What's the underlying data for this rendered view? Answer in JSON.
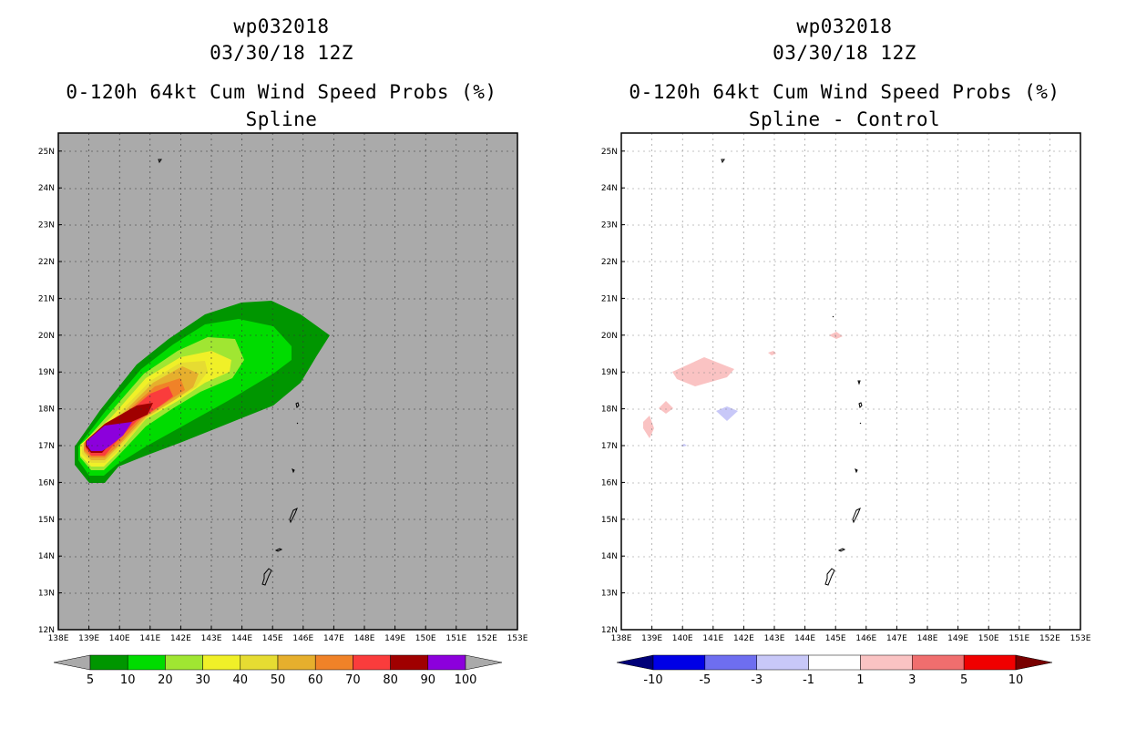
{
  "left_panel": {
    "title_line1": "wp032018",
    "title_line2": "03/30/18 12Z",
    "title_line3": "0-120h 64kt Cum Wind Speed Probs (%)",
    "title_line4": "Spline",
    "colorbar_labels": [
      "5",
      "10",
      "20",
      "30",
      "40",
      "50",
      "60",
      "70",
      "80",
      "90",
      "100"
    ],
    "colorbar_colors": [
      "#009600",
      "#00dc00",
      "#a0e632",
      "#f0f028",
      "#e6dc32",
      "#e6af2d",
      "#f08228",
      "#fa3c3c",
      "#a00000",
      "#8c00dc"
    ]
  },
  "right_panel": {
    "title_line1": "wp032018",
    "title_line2": "03/30/18 12Z",
    "title_line3": "0-120h 64kt Cum Wind Speed Probs (%)",
    "title_line4": "Spline - Control",
    "colorbar_labels": [
      "-10",
      "-5",
      "-3",
      "-1",
      "1",
      "3",
      "5",
      "10"
    ],
    "colorbar_colors": [
      "#0000e6",
      "#6e6ef0",
      "#c8c8f8",
      "#ffffff",
      "#fac3c3",
      "#f06e6e",
      "#f00000"
    ]
  },
  "map": {
    "x_ticks": [
      "138E",
      "139E",
      "140E",
      "141E",
      "142E",
      "143E",
      "144E",
      "145E",
      "146E",
      "147E",
      "148E",
      "149E",
      "150E",
      "151E",
      "152E",
      "153E"
    ],
    "y_ticks": [
      "12N",
      "13N",
      "14N",
      "15N",
      "16N",
      "17N",
      "18N",
      "19N",
      "20N",
      "21N",
      "22N",
      "23N",
      "24N",
      "25N"
    ]
  }
}
